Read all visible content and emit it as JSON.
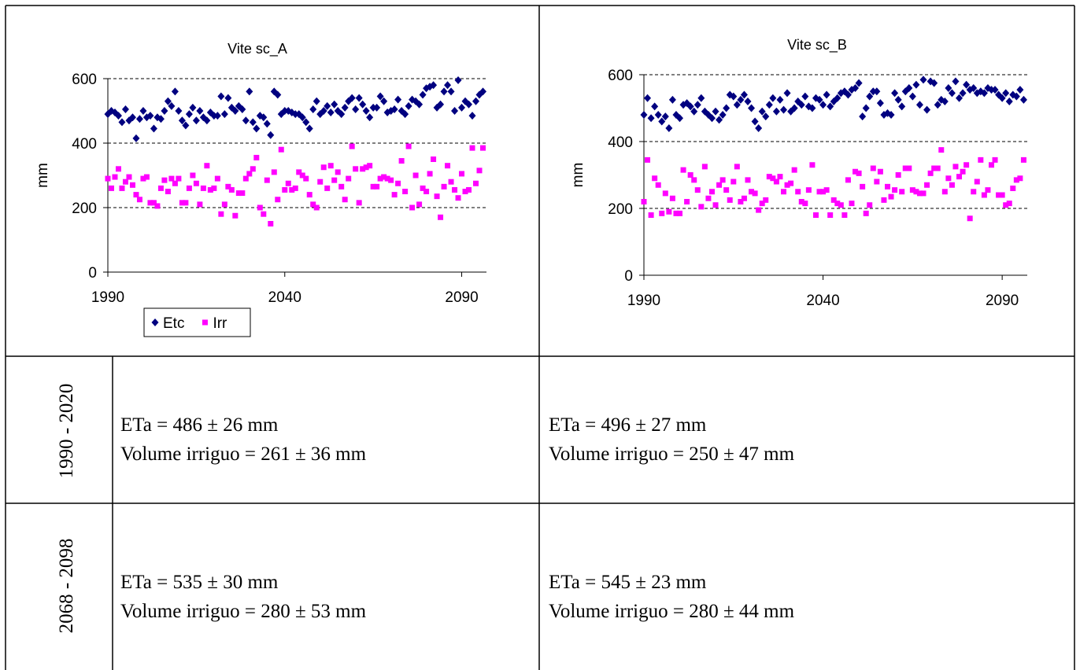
{
  "chart_data": [
    {
      "type": "scatter",
      "title": "Vite sc_A",
      "y_label": "mm",
      "x": [
        1990,
        1991,
        1992,
        1993,
        1994,
        1995,
        1996,
        1997,
        1998,
        1999,
        2000,
        2001,
        2002,
        2003,
        2004,
        2005,
        2006,
        2007,
        2008,
        2009,
        2010,
        2011,
        2012,
        2013,
        2014,
        2015,
        2016,
        2017,
        2018,
        2019,
        2020,
        2021,
        2022,
        2023,
        2024,
        2025,
        2026,
        2027,
        2028,
        2029,
        2030,
        2031,
        2032,
        2033,
        2034,
        2035,
        2036,
        2037,
        2038,
        2039,
        2040,
        2041,
        2042,
        2043,
        2044,
        2045,
        2046,
        2047,
        2048,
        2049,
        2050,
        2051,
        2052,
        2053,
        2054,
        2055,
        2056,
        2057,
        2058,
        2059,
        2060,
        2061,
        2062,
        2063,
        2064,
        2065,
        2066,
        2067,
        2068,
        2069,
        2070,
        2071,
        2072,
        2073,
        2074,
        2075,
        2076,
        2077,
        2078,
        2079,
        2080,
        2081,
        2082,
        2083,
        2084,
        2085,
        2086,
        2087,
        2088,
        2089,
        2090,
        2091,
        2092,
        2093,
        2094,
        2095,
        2096
      ],
      "series": [
        {
          "name": "Etc",
          "color": "#000080",
          "marker": "diamond",
          "values": [
            490,
            500,
            495,
            485,
            465,
            505,
            470,
            480,
            415,
            475,
            500,
            480,
            485,
            445,
            480,
            475,
            500,
            530,
            515,
            560,
            500,
            470,
            455,
            490,
            510,
            470,
            500,
            480,
            470,
            495,
            485,
            485,
            545,
            490,
            540,
            510,
            500,
            515,
            505,
            470,
            560,
            465,
            445,
            485,
            480,
            460,
            425,
            560,
            550,
            490,
            500,
            500,
            495,
            490,
            490,
            480,
            465,
            445,
            505,
            530,
            490,
            500,
            515,
            495,
            520,
            500,
            490,
            510,
            530,
            540,
            505,
            540,
            520,
            500,
            480,
            510,
            510,
            545,
            530,
            495,
            500,
            505,
            535,
            500,
            490,
            515,
            535,
            530,
            520,
            550,
            570,
            575,
            580,
            510,
            520,
            560,
            580,
            560,
            500,
            595,
            510,
            530,
            520,
            485,
            530,
            550,
            560
          ]
        },
        {
          "name": "Irr",
          "color": "#ff00ff",
          "marker": "square",
          "values": [
            290,
            260,
            295,
            320,
            260,
            280,
            295,
            270,
            240,
            225,
            290,
            295,
            215,
            215,
            205,
            260,
            285,
            250,
            290,
            275,
            290,
            215,
            215,
            260,
            300,
            275,
            210,
            260,
            330,
            255,
            260,
            290,
            180,
            210,
            265,
            255,
            175,
            245,
            245,
            290,
            305,
            320,
            355,
            200,
            180,
            285,
            150,
            310,
            225,
            380,
            255,
            275,
            255,
            260,
            310,
            300,
            290,
            240,
            210,
            200,
            280,
            325,
            260,
            330,
            285,
            310,
            265,
            225,
            290,
            390,
            320,
            215,
            320,
            325,
            330,
            265,
            265,
            290,
            295,
            290,
            285,
            240,
            275,
            345,
            250,
            390,
            200,
            300,
            210,
            260,
            250,
            305,
            350,
            235,
            170,
            265,
            330,
            280,
            255,
            230,
            305,
            250,
            255,
            385,
            275,
            315,
            385
          ]
        }
      ],
      "xlim": [
        1990,
        2097
      ],
      "xticks": [
        1990,
        2040,
        2090
      ],
      "ylim": [
        0,
        600
      ],
      "yticks": [
        0,
        200,
        400,
        600
      ],
      "grid": true,
      "legend": "bottom-left"
    },
    {
      "type": "scatter",
      "title": "Vite sc_B",
      "y_label": "mm",
      "x": [
        1990,
        1991,
        1992,
        1993,
        1994,
        1995,
        1996,
        1997,
        1998,
        1999,
        2000,
        2001,
        2002,
        2003,
        2004,
        2005,
        2006,
        2007,
        2008,
        2009,
        2010,
        2011,
        2012,
        2013,
        2014,
        2015,
        2016,
        2017,
        2018,
        2019,
        2020,
        2021,
        2022,
        2023,
        2024,
        2025,
        2026,
        2027,
        2028,
        2029,
        2030,
        2031,
        2032,
        2033,
        2034,
        2035,
        2036,
        2037,
        2038,
        2039,
        2040,
        2041,
        2042,
        2043,
        2044,
        2045,
        2046,
        2047,
        2048,
        2049,
        2050,
        2051,
        2052,
        2053,
        2054,
        2055,
        2056,
        2057,
        2058,
        2059,
        2060,
        2061,
        2062,
        2063,
        2064,
        2065,
        2066,
        2067,
        2068,
        2069,
        2070,
        2071,
        2072,
        2073,
        2074,
        2075,
        2076,
        2077,
        2078,
        2079,
        2080,
        2081,
        2082,
        2083,
        2084,
        2085,
        2086,
        2087,
        2088,
        2089,
        2090,
        2091,
        2092,
        2093,
        2094,
        2095,
        2096
      ],
      "series": [
        {
          "name": "Etc",
          "color": "#000080",
          "marker": "diamond",
          "values": [
            480,
            530,
            470,
            505,
            480,
            460,
            475,
            440,
            525,
            480,
            470,
            510,
            515,
            505,
            490,
            510,
            530,
            490,
            480,
            470,
            490,
            465,
            480,
            500,
            540,
            535,
            510,
            525,
            540,
            520,
            500,
            460,
            440,
            490,
            475,
            510,
            530,
            490,
            525,
            495,
            545,
            490,
            500,
            520,
            510,
            535,
            505,
            500,
            530,
            525,
            510,
            540,
            505,
            520,
            530,
            545,
            550,
            540,
            555,
            560,
            575,
            475,
            500,
            535,
            550,
            550,
            515,
            480,
            485,
            480,
            545,
            525,
            505,
            550,
            560,
            535,
            570,
            510,
            585,
            495,
            580,
            575,
            510,
            525,
            520,
            560,
            545,
            580,
            530,
            545,
            570,
            555,
            560,
            545,
            550,
            545,
            560,
            555,
            555,
            540,
            530,
            545,
            520,
            540,
            535,
            555,
            525
          ]
        },
        {
          "name": "Irr",
          "color": "#ff00ff",
          "marker": "square",
          "values": [
            220,
            345,
            180,
            290,
            270,
            185,
            245,
            190,
            230,
            185,
            185,
            315,
            220,
            300,
            285,
            255,
            205,
            325,
            230,
            250,
            210,
            270,
            285,
            255,
            225,
            280,
            325,
            220,
            230,
            285,
            250,
            245,
            195,
            215,
            225,
            295,
            290,
            280,
            295,
            250,
            270,
            275,
            315,
            250,
            220,
            215,
            255,
            330,
            180,
            250,
            250,
            255,
            180,
            225,
            215,
            210,
            180,
            285,
            215,
            310,
            305,
            265,
            185,
            210,
            320,
            280,
            310,
            225,
            265,
            235,
            255,
            300,
            250,
            320,
            320,
            255,
            250,
            245,
            245,
            270,
            305,
            320,
            320,
            375,
            250,
            290,
            270,
            325,
            295,
            310,
            330,
            170,
            250,
            280,
            345,
            240,
            255,
            330,
            345,
            240,
            240,
            210,
            215,
            260,
            285,
            290,
            345
          ]
        }
      ],
      "xlim": [
        1990,
        2097
      ],
      "xticks": [
        1990,
        2040,
        2090
      ],
      "ylim": [
        0,
        600
      ],
      "yticks": [
        0,
        200,
        400,
        600
      ],
      "grid": true
    }
  ],
  "table": {
    "rows": [
      {
        "period": "1990 - 2020",
        "cells": [
          [
            "ETa = 486 ±  26 mm",
            "Volume irriguo = 261 ±  36 mm"
          ],
          [
            "ETa = 496 ±  27 mm",
            "Volume irriguo = 250 ±  47 mm"
          ]
        ]
      },
      {
        "period": "2068 - 2098",
        "cells": [
          [
            "ETa = 535 ±  30 mm",
            "Volume irriguo = 280 ±  53 mm"
          ],
          [
            "ETa = 545 ±  23 mm",
            "Volume irriguo = 280 ±  44 mm"
          ]
        ]
      }
    ]
  }
}
